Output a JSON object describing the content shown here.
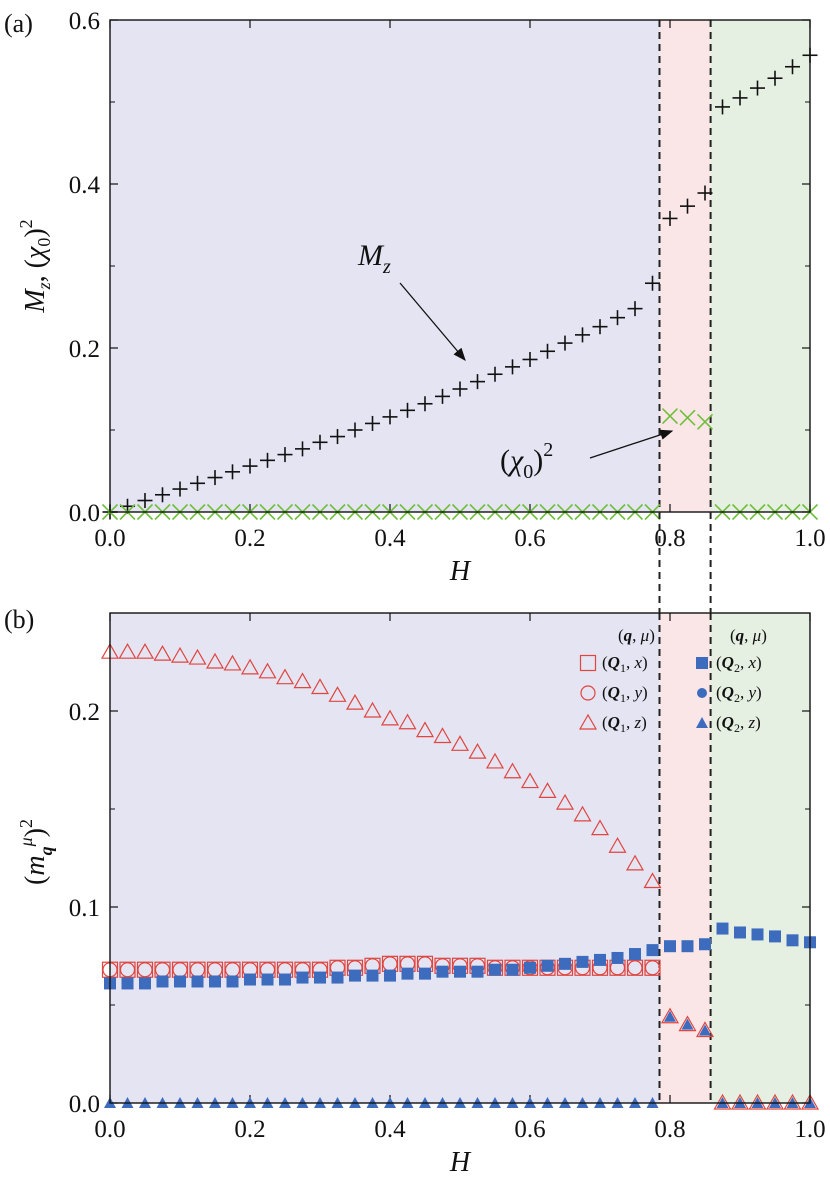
{
  "chart_data": [
    {
      "panel": "(a)",
      "type": "scatter",
      "xlabel": "H",
      "ylabel": "M_z, (χ_0)^2",
      "xlim": [
        0,
        1
      ],
      "ylim": [
        0,
        0.6
      ],
      "xticks": [
        "0.0",
        "0.2",
        "0.4",
        "0.6",
        "0.8",
        "1.0"
      ],
      "yticks": [
        "0.0",
        "0.2",
        "0.4",
        "0.6"
      ],
      "regions": [
        {
          "from": 0.0,
          "to": 0.785,
          "color": "#e4e4f2"
        },
        {
          "from": 0.785,
          "to": 0.858,
          "color": "#fbe6e7"
        },
        {
          "from": 0.858,
          "to": 1.0,
          "color": "#e6f0e2"
        }
      ],
      "boundaries": [
        0.785,
        0.858
      ],
      "annotations": [
        {
          "text": "M_z",
          "at": [
            0.36,
            0.31
          ],
          "target": [
            0.51,
            0.183
          ]
        },
        {
          "text": "(χ_0)^2",
          "at": [
            0.56,
            0.06
          ],
          "target": [
            0.785,
            0.1
          ]
        }
      ],
      "series": [
        {
          "name": "M_z",
          "marker": "plus",
          "color": "#111111",
          "x": [
            0.0,
            0.025,
            0.05,
            0.075,
            0.1,
            0.125,
            0.15,
            0.175,
            0.2,
            0.225,
            0.25,
            0.275,
            0.3,
            0.325,
            0.35,
            0.375,
            0.4,
            0.425,
            0.45,
            0.475,
            0.5,
            0.525,
            0.55,
            0.575,
            0.6,
            0.625,
            0.65,
            0.675,
            0.7,
            0.725,
            0.75,
            0.775,
            0.8,
            0.825,
            0.85,
            0.875,
            0.9,
            0.925,
            0.95,
            0.975,
            1.0
          ],
          "y": [
            0.0,
            0.007,
            0.014,
            0.021,
            0.028,
            0.035,
            0.042,
            0.049,
            0.056,
            0.063,
            0.07,
            0.077,
            0.085,
            0.092,
            0.1,
            0.108,
            0.116,
            0.124,
            0.132,
            0.141,
            0.15,
            0.159,
            0.168,
            0.177,
            0.186,
            0.196,
            0.206,
            0.216,
            0.226,
            0.237,
            0.248,
            0.279,
            0.358,
            0.373,
            0.389,
            0.494,
            0.505,
            0.517,
            0.529,
            0.543,
            0.557
          ]
        },
        {
          "name": "(χ_0)^2",
          "marker": "x",
          "color": "#6fbf3a",
          "x": [
            0.0,
            0.025,
            0.05,
            0.075,
            0.1,
            0.125,
            0.15,
            0.175,
            0.2,
            0.225,
            0.25,
            0.275,
            0.3,
            0.325,
            0.35,
            0.375,
            0.4,
            0.425,
            0.45,
            0.475,
            0.5,
            0.525,
            0.55,
            0.575,
            0.6,
            0.625,
            0.65,
            0.675,
            0.7,
            0.725,
            0.75,
            0.775,
            0.8,
            0.825,
            0.85,
            0.875,
            0.9,
            0.925,
            0.95,
            0.975,
            1.0
          ],
          "y": [
            0,
            0,
            0,
            0,
            0,
            0,
            0,
            0,
            0,
            0,
            0,
            0,
            0,
            0,
            0,
            0,
            0,
            0,
            0,
            0,
            0,
            0,
            0,
            0,
            0,
            0,
            0,
            0,
            0,
            0,
            0,
            0,
            0.117,
            0.115,
            0.11,
            0,
            0,
            0,
            0,
            0,
            0
          ]
        }
      ]
    },
    {
      "panel": "(b)",
      "type": "scatter",
      "xlabel": "H",
      "ylabel": "(m_q^μ)^2",
      "xlim": [
        0,
        1
      ],
      "ylim": [
        0,
        0.25
      ],
      "xticks": [
        "0.0",
        "0.2",
        "0.4",
        "0.6",
        "0.8",
        "1.0"
      ],
      "yticks": [
        "0.0",
        "0.1",
        "0.2"
      ],
      "regions": [
        {
          "from": 0.0,
          "to": 0.785,
          "color": "#e4e4f2"
        },
        {
          "from": 0.785,
          "to": 0.858,
          "color": "#fbe6e7"
        },
        {
          "from": 0.858,
          "to": 1.0,
          "color": "#e6f0e2"
        }
      ],
      "boundaries": [
        0.785,
        0.858
      ],
      "legend": {
        "placement": "top-right",
        "headers": [
          "(q, μ)",
          "(q, μ)"
        ]
      },
      "x": [
        0.0,
        0.025,
        0.05,
        0.075,
        0.1,
        0.125,
        0.15,
        0.175,
        0.2,
        0.225,
        0.25,
        0.275,
        0.3,
        0.325,
        0.35,
        0.375,
        0.4,
        0.425,
        0.45,
        0.475,
        0.5,
        0.525,
        0.55,
        0.575,
        0.6,
        0.625,
        0.65,
        0.675,
        0.7,
        0.725,
        0.75,
        0.775,
        0.8,
        0.825,
        0.85,
        0.875,
        0.9,
        0.925,
        0.95,
        0.975,
        1.0
      ],
      "series": [
        {
          "name": "(Q_1, x)",
          "marker": "square-open",
          "color": "#e0453f",
          "y": [
            0.068,
            0.068,
            0.068,
            0.068,
            0.068,
            0.068,
            0.068,
            0.068,
            0.068,
            0.068,
            0.068,
            0.068,
            0.068,
            0.069,
            0.069,
            0.07,
            0.071,
            0.071,
            0.071,
            0.07,
            0.07,
            0.07,
            0.069,
            0.069,
            0.069,
            0.069,
            0.069,
            0.069,
            0.069,
            0.069,
            0.069,
            0.069,
            null,
            null,
            null,
            null,
            null,
            null,
            null,
            null,
            null
          ]
        },
        {
          "name": "(Q_1, y)",
          "marker": "circle-open",
          "color": "#e0453f",
          "y": [
            0.068,
            0.068,
            0.068,
            0.068,
            0.068,
            0.068,
            0.068,
            0.068,
            0.068,
            0.068,
            0.068,
            0.068,
            0.068,
            0.069,
            0.069,
            0.07,
            0.071,
            0.071,
            0.071,
            0.07,
            0.07,
            0.07,
            0.069,
            0.069,
            0.069,
            0.069,
            0.069,
            0.069,
            0.069,
            0.069,
            0.069,
            0.069,
            null,
            null,
            null,
            null,
            null,
            null,
            null,
            null,
            null
          ]
        },
        {
          "name": "(Q_1, z)",
          "marker": "triangle-open",
          "color": "#e0453f",
          "y": [
            0.23,
            0.23,
            0.23,
            0.229,
            0.228,
            0.227,
            0.225,
            0.224,
            0.222,
            0.22,
            0.217,
            0.215,
            0.212,
            0.208,
            0.204,
            0.2,
            0.196,
            0.194,
            0.19,
            0.187,
            0.183,
            0.179,
            0.174,
            0.169,
            0.164,
            0.159,
            0.153,
            0.147,
            0.14,
            0.131,
            0.122,
            0.113,
            0.044,
            0.04,
            0.037,
            0,
            0,
            0,
            0,
            0,
            0
          ]
        },
        {
          "name": "(Q_2, x)",
          "marker": "square-filled",
          "color": "#3d6cbe",
          "y": [
            0.061,
            0.061,
            0.061,
            0.062,
            0.062,
            0.062,
            0.062,
            0.062,
            0.063,
            0.063,
            0.063,
            0.064,
            0.064,
            0.064,
            0.065,
            0.065,
            0.065,
            0.066,
            0.066,
            0.067,
            0.067,
            0.067,
            0.068,
            0.068,
            0.069,
            0.07,
            0.071,
            0.072,
            0.073,
            0.074,
            0.076,
            0.078,
            0.08,
            0.08,
            0.081,
            0.089,
            0.087,
            0.086,
            0.085,
            0.083,
            0.082
          ]
        },
        {
          "name": "(Q_2, y)",
          "marker": "circle-filled",
          "color": "#3d6cbe",
          "y": [
            0.061,
            0.061,
            0.061,
            0.062,
            0.062,
            0.062,
            0.062,
            0.062,
            0.063,
            0.063,
            0.063,
            0.064,
            0.064,
            0.064,
            0.065,
            0.065,
            0.065,
            0.066,
            0.066,
            0.067,
            0.067,
            0.067,
            0.068,
            0.068,
            0.069,
            0.07,
            0.071,
            0.072,
            0.073,
            0.074,
            0.076,
            0.078,
            0.08,
            0.08,
            0.081,
            0.089,
            0.087,
            0.086,
            0.085,
            0.083,
            0.082
          ]
        },
        {
          "name": "(Q_2, z)",
          "marker": "triangle-filled",
          "color": "#3d6cbe",
          "y": [
            0,
            0,
            0,
            0,
            0,
            0,
            0,
            0,
            0,
            0,
            0,
            0,
            0,
            0,
            0,
            0,
            0,
            0,
            0,
            0,
            0,
            0,
            0,
            0,
            0,
            0,
            0,
            0,
            0,
            0,
            0,
            0,
            0.044,
            0.04,
            0.037,
            0,
            0,
            0,
            0,
            0,
            0
          ]
        }
      ]
    }
  ]
}
